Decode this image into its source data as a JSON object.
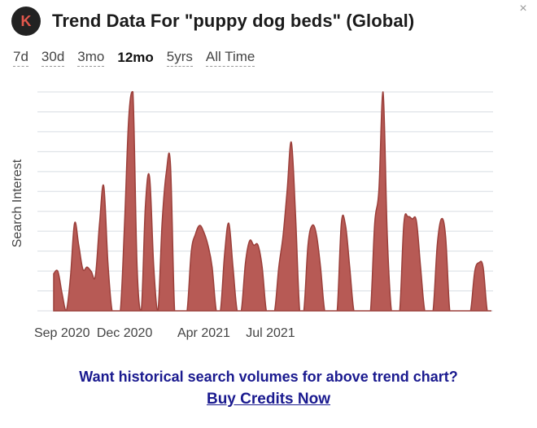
{
  "header": {
    "logo_letter": "K",
    "title": "Trend Data For \"puppy dog beds\" (Global)"
  },
  "close_icon": "×",
  "tabs": [
    {
      "label": "7d",
      "active": false
    },
    {
      "label": "30d",
      "active": false
    },
    {
      "label": "3mo",
      "active": false
    },
    {
      "label": "12mo",
      "active": true
    },
    {
      "label": "5yrs",
      "active": false
    },
    {
      "label": "All Time",
      "active": false
    }
  ],
  "cta": {
    "line1": "Want historical search volumes for above trend chart?",
    "link": "Buy Credits Now"
  },
  "colors": {
    "area_fill": "#b75a55",
    "area_stroke": "#9b3f3a",
    "grid": "#d8dde3",
    "link": "#1a1a8f"
  },
  "chart_data": {
    "type": "area",
    "title": "",
    "xlabel": "",
    "ylabel": "Search Interest",
    "ylim": [
      0,
      100
    ],
    "grid": true,
    "x_tick_labels": [
      "Sep 2020",
      "Dec 2020",
      "Apr 2021",
      "Jul 2021"
    ],
    "x_tick_index": [
      2,
      17,
      36,
      52
    ],
    "series": [
      {
        "values": [
          17,
          18,
          8,
          0,
          15,
          40,
          30,
          19,
          20,
          18,
          16,
          40,
          57,
          22,
          0,
          0,
          0,
          40,
          88,
          100,
          20,
          0,
          48,
          61,
          20,
          0,
          40,
          63,
          67,
          0,
          0,
          0,
          0,
          27,
          35,
          39,
          36,
          30,
          20,
          0,
          0,
          26,
          40,
          20,
          0,
          0,
          22,
          32,
          30,
          30,
          20,
          0,
          0,
          0,
          20,
          34,
          55,
          77,
          44,
          0,
          0,
          30,
          39,
          35,
          20,
          0,
          0,
          0,
          0,
          40,
          39,
          20,
          0,
          0,
          0,
          0,
          0,
          40,
          55,
          100,
          35,
          0,
          0,
          0,
          40,
          43,
          42,
          41,
          20,
          0,
          0,
          0,
          30,
          42,
          34,
          0,
          0,
          0,
          0,
          0,
          0,
          18,
          22,
          20,
          0,
          0
        ]
      }
    ]
  }
}
